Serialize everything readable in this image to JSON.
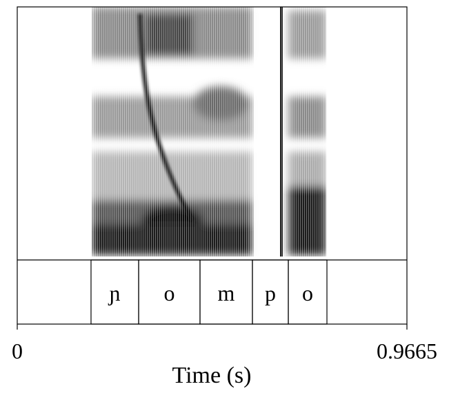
{
  "chart_data": {
    "type": "spectrogram",
    "x_label": "Time (s)",
    "xlim": [
      0,
      0.9665
    ],
    "xticks": [
      0,
      0.9665
    ],
    "intervals": [
      {
        "label": "ɲ",
        "start": 0.183,
        "end": 0.3011
      },
      {
        "label": "o",
        "start": 0.3011,
        "end": 0.4533
      },
      {
        "label": "m",
        "start": 0.4533,
        "end": 0.5833
      },
      {
        "label": "p",
        "start": 0.5833,
        "end": 0.6723
      },
      {
        "label": "o",
        "start": 0.6723,
        "end": 0.7681
      }
    ]
  }
}
